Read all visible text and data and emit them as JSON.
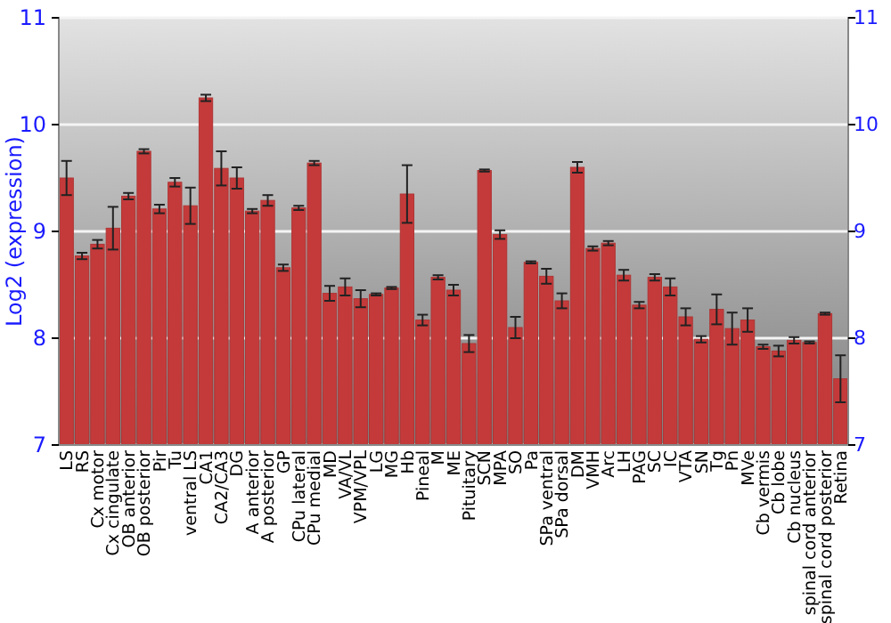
{
  "chart_data": {
    "type": "bar",
    "ylabel": "Log2 (expression)",
    "categories": [
      "LS",
      "RS",
      "Cx motor",
      "Cx cingulate",
      "OB anterior",
      "OB posterior",
      "Pir",
      "Tu",
      "ventral LS",
      "CA1",
      "CA2/CA3",
      "DG",
      "A anterior",
      "A posterior",
      "GP",
      "CPu lateral",
      "CPu medial",
      "MD",
      "VA/VL",
      "VPM/VPL",
      "LG",
      "MG",
      "Hb",
      "Pineal",
      "M",
      "ME",
      "Pituitary",
      "SCN",
      "MPA",
      "SO",
      "Pa",
      "SPa ventral",
      "SPa dorsal",
      "DM",
      "VMH",
      "Arc",
      "LH",
      "PAG",
      "SC",
      "IC",
      "VTA",
      "SN",
      "Tg",
      "Pn",
      "MVe",
      "Cb vermis",
      "Cb lobe",
      "Cb nucleus",
      "spinal cord anterior",
      "spinal cord posterior",
      "Retina"
    ],
    "values": [
      9.5,
      8.77,
      8.88,
      9.03,
      9.33,
      9.75,
      9.21,
      9.46,
      9.24,
      10.25,
      9.59,
      9.5,
      9.19,
      9.29,
      8.66,
      9.22,
      9.64,
      8.42,
      8.48,
      8.37,
      8.41,
      8.47,
      9.35,
      8.17,
      8.57,
      8.45,
      7.95,
      9.57,
      8.97,
      8.1,
      8.71,
      8.58,
      8.35,
      9.6,
      8.84,
      8.89,
      8.59,
      8.31,
      8.57,
      8.48,
      8.2,
      7.99,
      8.27,
      8.09,
      8.17,
      7.92,
      7.88,
      7.98,
      7.96,
      8.23,
      7.62
    ],
    "errors": [
      0.16,
      0.03,
      0.04,
      0.2,
      0.03,
      0.02,
      0.04,
      0.04,
      0.17,
      0.03,
      0.16,
      0.1,
      0.02,
      0.05,
      0.03,
      0.02,
      0.02,
      0.07,
      0.08,
      0.08,
      0.01,
      0.01,
      0.27,
      0.05,
      0.02,
      0.05,
      0.08,
      0.01,
      0.04,
      0.1,
      0.01,
      0.07,
      0.07,
      0.05,
      0.02,
      0.02,
      0.05,
      0.03,
      0.03,
      0.08,
      0.08,
      0.03,
      0.14,
      0.15,
      0.11,
      0.02,
      0.05,
      0.03,
      0.01,
      0.01,
      0.22
    ],
    "color": "#c43a3a",
    "ylim": [
      7,
      11
    ],
    "yticks": [
      7,
      8,
      9,
      10,
      11
    ],
    "y2lim": [
      7,
      11
    ],
    "y2ticks": [
      7,
      8,
      9,
      10,
      11
    ],
    "grid": "y"
  }
}
